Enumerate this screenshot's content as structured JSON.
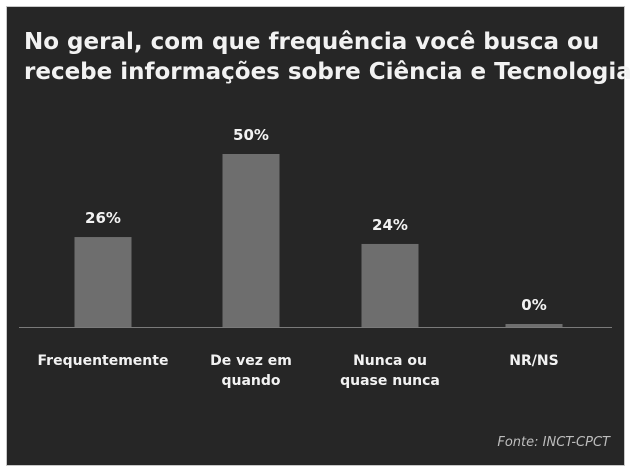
{
  "title_lines": [
    "No geral, com que frequência você busca ou",
    "recebe informações sobre Ciência e Tecnologia?"
  ],
  "source": "Fonte: INCT-CPCT",
  "colors": {
    "background": "#262626",
    "bar": "#6e6e6e",
    "text": "#f2f2f2",
    "baseline": "#7a7a7a"
  },
  "chart_data": {
    "type": "bar",
    "title": "No geral, com que frequência você busca ou recebe informações sobre Ciência e Tecnologia?",
    "categories": [
      [
        "Frequentemente"
      ],
      [
        "De vez em",
        "quando"
      ],
      [
        "Nunca ou",
        "quase nunca"
      ],
      [
        "NR/NS"
      ]
    ],
    "values": [
      26,
      50,
      24,
      0
    ],
    "value_labels": [
      "26%",
      "50%",
      "24%",
      "0%"
    ],
    "unit": "%",
    "ylim": [
      0,
      50
    ],
    "grid": false,
    "legend": "none"
  }
}
